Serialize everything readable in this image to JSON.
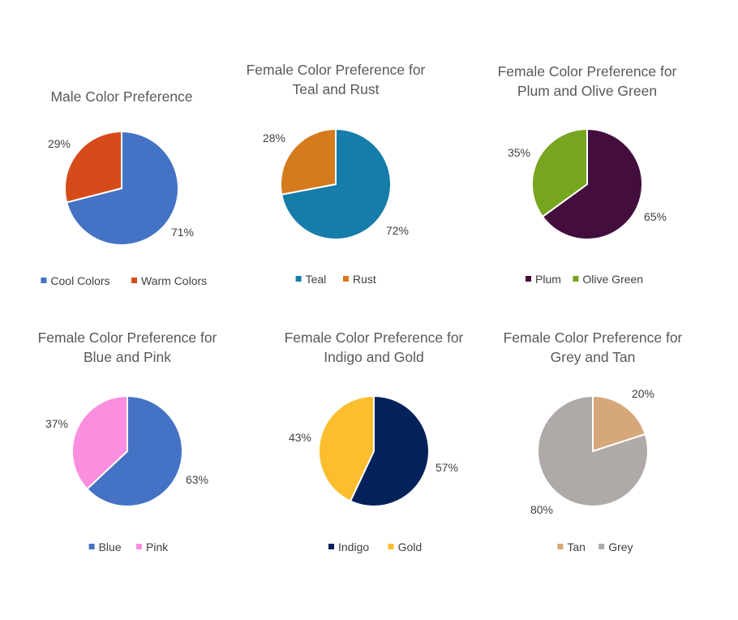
{
  "chart_data": [
    {
      "type": "pie",
      "title": [
        "Male Color Preference"
      ],
      "categories": [
        "Cool Colors",
        "Warm Colors"
      ],
      "values": [
        71,
        29
      ],
      "data_labels": [
        "71%",
        "29%"
      ],
      "colors": [
        "#4472C4",
        "#D64B19"
      ],
      "legend": "bottom"
    },
    {
      "type": "pie",
      "title": [
        "Female Color Preference for",
        "Teal and Rust"
      ],
      "categories": [
        "Teal",
        "Rust"
      ],
      "values": [
        72,
        28
      ],
      "data_labels": [
        "72%",
        "28%"
      ],
      "colors": [
        "#167CA9",
        "#D67A1E"
      ],
      "legend": "bottom"
    },
    {
      "type": "pie",
      "title": [
        "Female Color Preference for",
        "Plum and Olive Green"
      ],
      "categories": [
        "Plum",
        "Olive Green"
      ],
      "values": [
        65,
        35
      ],
      "data_labels": [
        "65%",
        "35%"
      ],
      "colors": [
        "#430E3D",
        "#78A51F"
      ],
      "legend": "bottom"
    },
    {
      "type": "pie",
      "title": [
        "Female Color Preference for",
        "Blue and Pink"
      ],
      "categories": [
        "Blue",
        "Pink"
      ],
      "values": [
        63,
        37
      ],
      "data_labels": [
        "63%",
        "37%"
      ],
      "colors": [
        "#4472C4",
        "#FC8EDF"
      ],
      "legend": "bottom"
    },
    {
      "type": "pie",
      "title": [
        "Female Color Preference for",
        "Indigo and Gold"
      ],
      "categories": [
        "Indigo",
        "Gold"
      ],
      "values": [
        57,
        43
      ],
      "data_labels": [
        "57%",
        "43%"
      ],
      "colors": [
        "#03215A",
        "#FCBE2E"
      ],
      "legend": "bottom"
    },
    {
      "type": "pie",
      "title": [
        "Female Color Preference for",
        "Grey and Tan"
      ],
      "categories": [
        "Tan",
        "Grey"
      ],
      "values": [
        20,
        80
      ],
      "data_labels": [
        "20%",
        "80%"
      ],
      "colors": [
        "#D5A77A",
        "#AFAAA8"
      ],
      "legend": "bottom"
    }
  ]
}
